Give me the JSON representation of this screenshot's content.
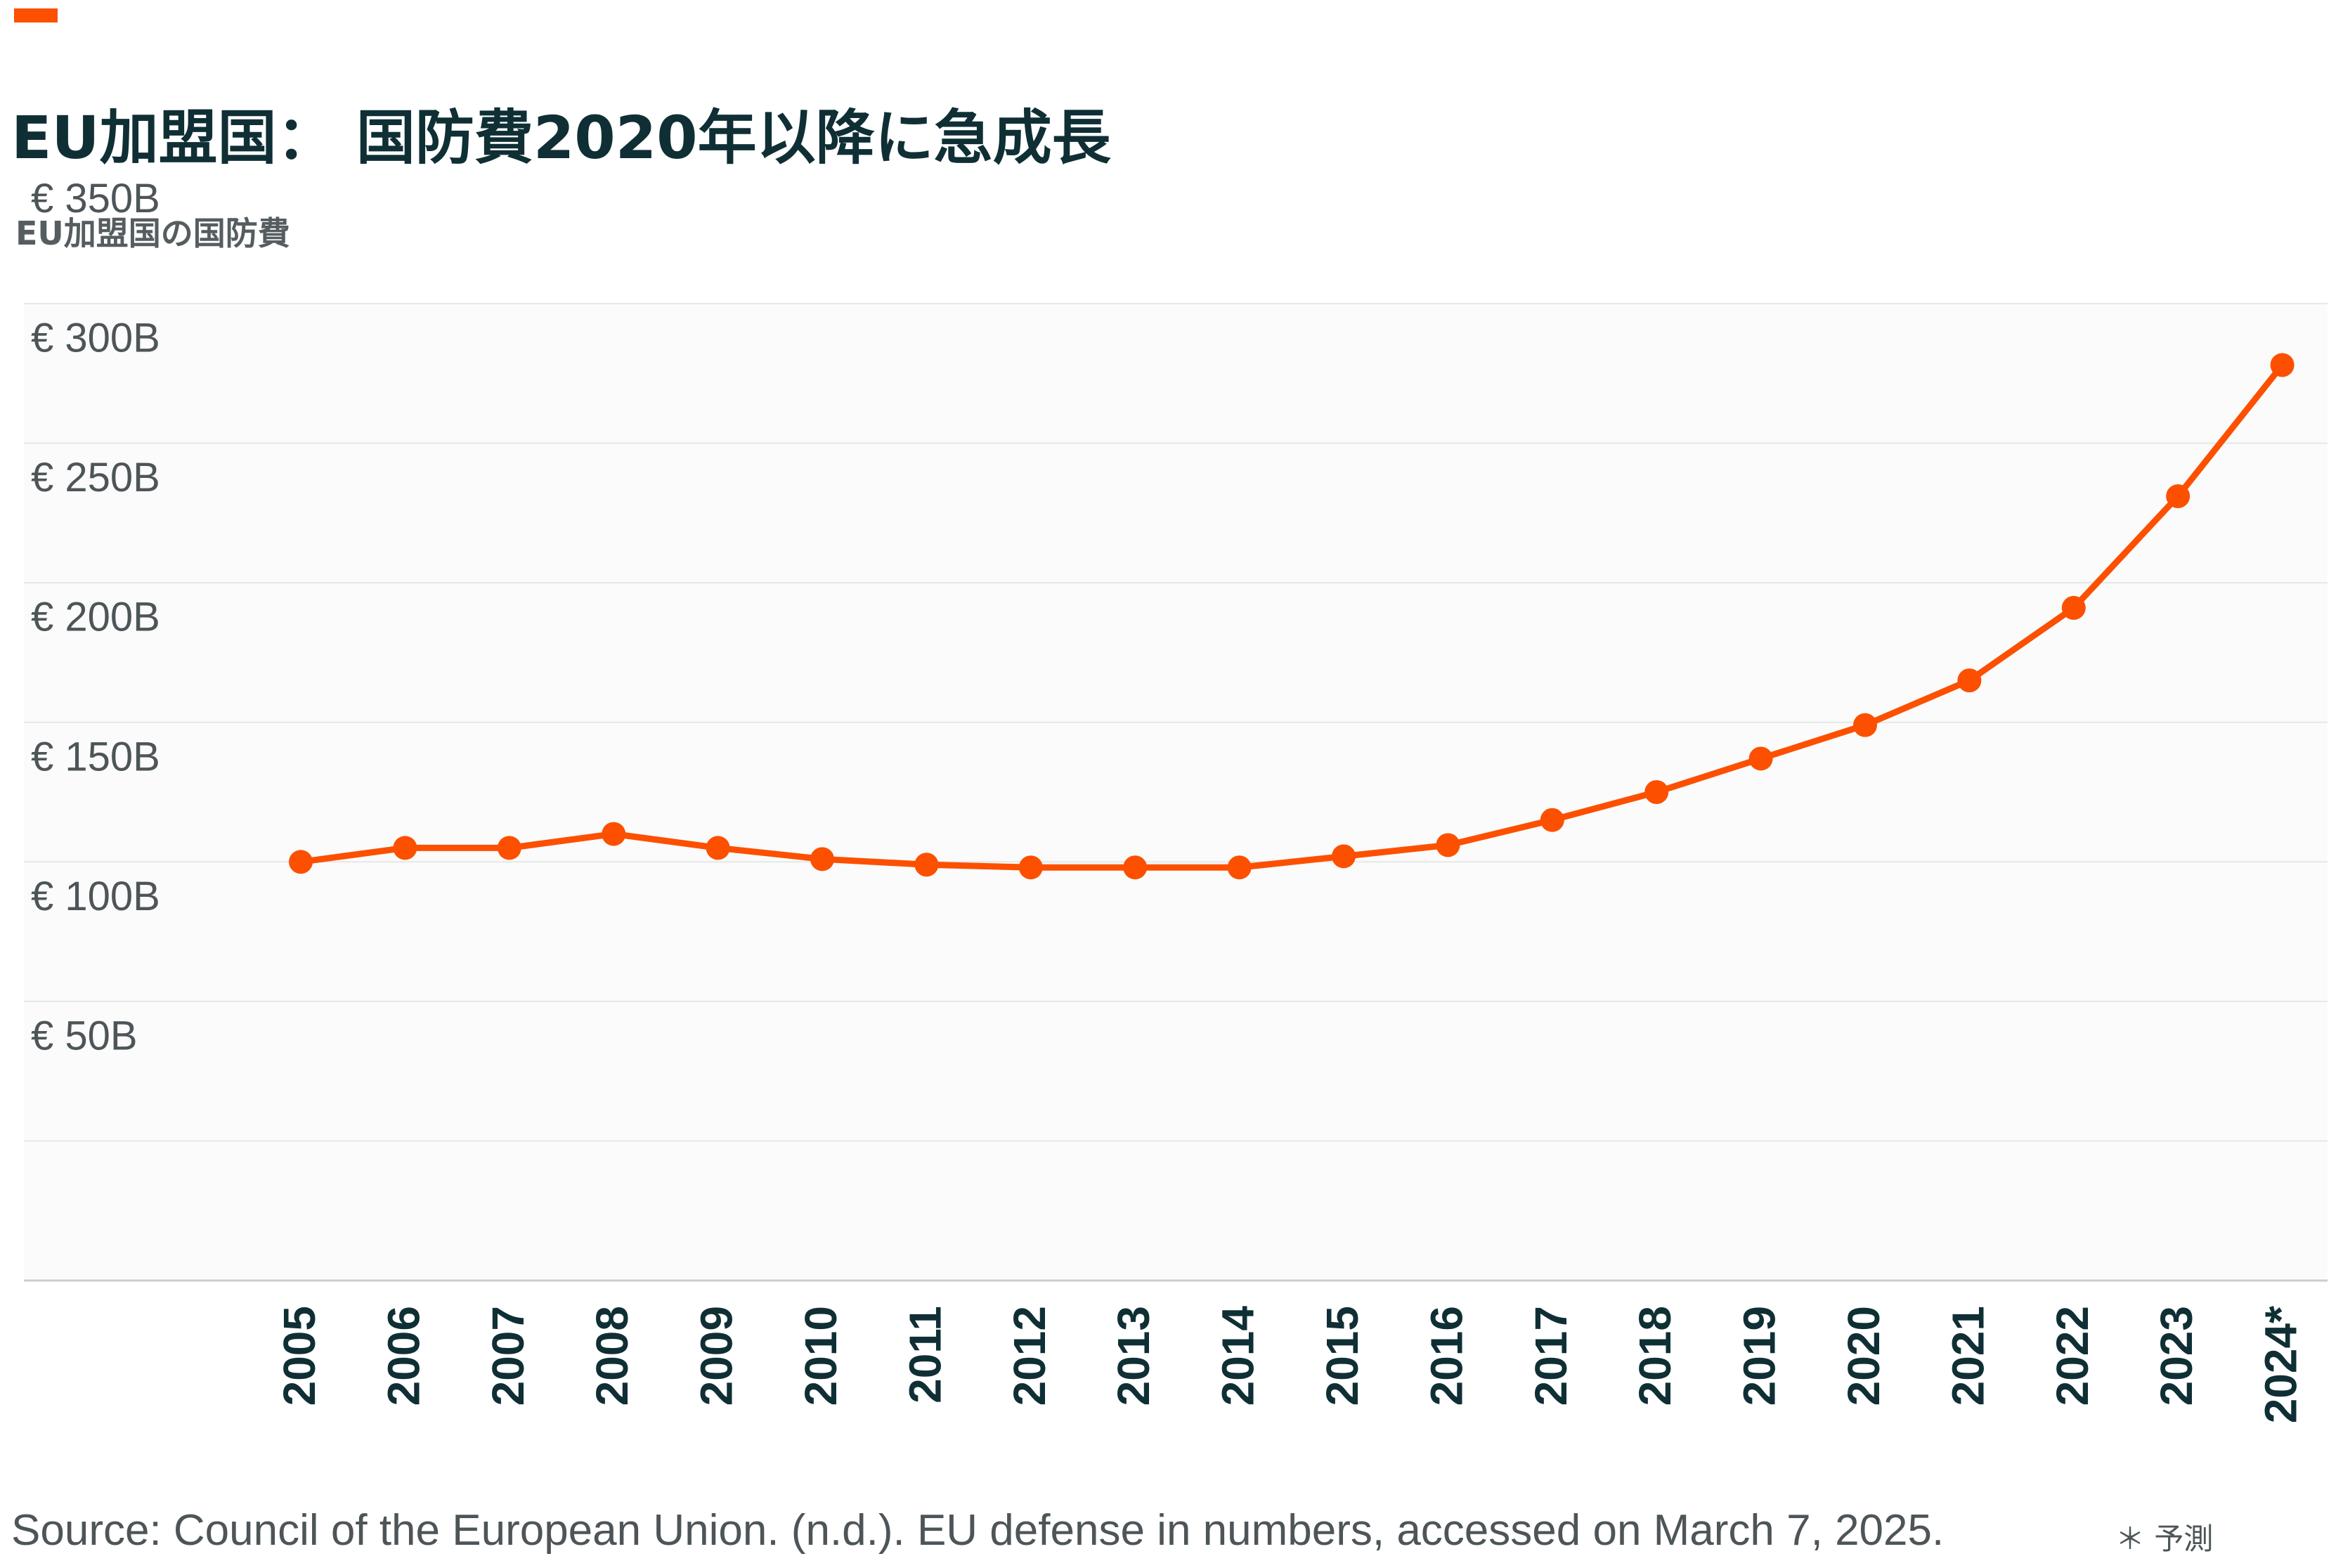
{
  "header": {
    "title": "EU加盟国： 国防費2020年以降に急成長",
    "subtitle": "EU加盟国の国防費"
  },
  "footer": {
    "source": "Source: Council of the European Union. (n.d.). EU defense in numbers, accessed on March 7, 2025.",
    "footnote": "＊ 予測"
  },
  "colors": {
    "accent": "#fc5000",
    "line": "#fc5000",
    "title": "#0f2f35",
    "plot_background": "#fafbfa",
    "gridline": "#e6e8e6",
    "axis_text": "#4d5558"
  },
  "chart_data": {
    "type": "line",
    "title": "",
    "xlabel": "",
    "ylabel": "",
    "categories": [
      "2005",
      "2006",
      "2007",
      "2008",
      "2009",
      "2010",
      "2011",
      "2012",
      "2013",
      "2014",
      "2015",
      "2016",
      "2017",
      "2018",
      "2019",
      "2020",
      "2021",
      "2022",
      "2023",
      "2024*"
    ],
    "series": [
      {
        "values": [
          150,
          155,
          155,
          160,
          155,
          151,
          149,
          148,
          148,
          148,
          152,
          156,
          165,
          175,
          187,
          199,
          215,
          241,
          281,
          328
        ]
      }
    ],
    "ylim": [
      0,
      350
    ],
    "yticks": [
      50,
      100,
      150,
      200,
      250,
      300,
      350
    ],
    "ytick_labels": [
      "€ 50B",
      "€ 100B",
      "€ 150B",
      "€ 200B",
      "€ 250B",
      "€ 300B",
      "€ 350B"
    ],
    "grid": true,
    "legend": "none"
  }
}
